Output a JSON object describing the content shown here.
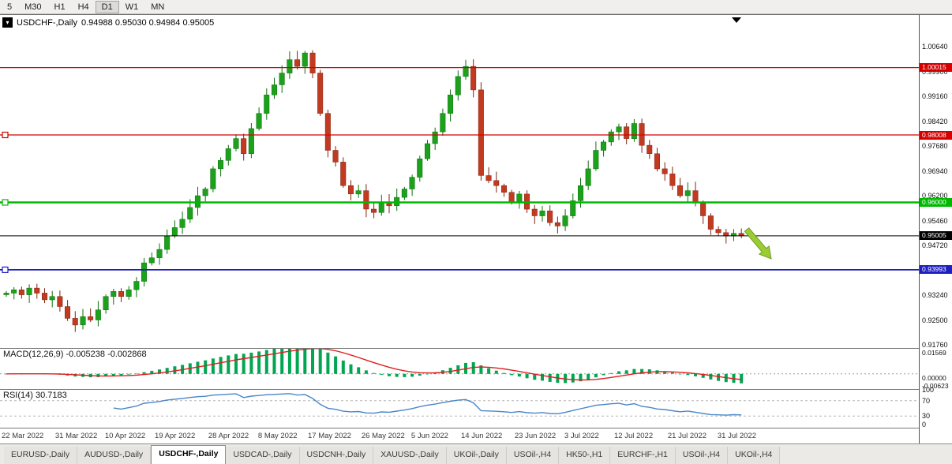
{
  "timeframe_toolbar": [
    "5",
    "M30",
    "H1",
    "H4",
    "D1",
    "W1",
    "MN"
  ],
  "active_timeframe": "D1",
  "header": {
    "symbol_label": "USDCHF-,Daily",
    "quote": "0.94988 0.95030 0.94984 0.95005"
  },
  "indicator_labels": {
    "macd": "MACD(12,26,9)",
    "macd_values": "-0.005238 -0.002868",
    "rsi": "RSI(14)",
    "rsi_value": "30.7183"
  },
  "chart_data": {
    "type": "candlestick",
    "symbol": "USDCHF",
    "timeframe": "Daily",
    "quote_ohlc": [
      0.94988,
      0.9503,
      0.94984,
      0.95005
    ],
    "first_open": 0.9325,
    "closes": [
      0.933,
      0.934,
      0.9325,
      0.9345,
      0.933,
      0.931,
      0.932,
      0.929,
      0.9255,
      0.9235,
      0.926,
      0.925,
      0.928,
      0.932,
      0.9335,
      0.932,
      0.934,
      0.9365,
      0.942,
      0.9435,
      0.946,
      0.95,
      0.9525,
      0.955,
      0.9585,
      0.962,
      0.964,
      0.97,
      0.9725,
      0.976,
      0.979,
      0.9745,
      0.982,
      0.9865,
      0.992,
      0.995,
      0.9985,
      1.0025,
      1.0005,
      1.0045,
      0.9985,
      0.9865,
      0.9755,
      0.972,
      0.965,
      0.9625,
      0.9635,
      0.958,
      0.957,
      0.96,
      0.959,
      0.9615,
      0.964,
      0.9675,
      0.973,
      0.9775,
      0.981,
      0.9865,
      0.992,
      0.9975,
      1.0005,
      0.9935,
      0.968,
      0.9665,
      0.965,
      0.963,
      0.96,
      0.9625,
      0.958,
      0.956,
      0.9575,
      0.954,
      0.953,
      0.956,
      0.9605,
      0.965,
      0.97,
      0.9755,
      0.978,
      0.981,
      0.9825,
      0.979,
      0.9835,
      0.977,
      0.9745,
      0.97,
      0.9685,
      0.965,
      0.962,
      0.9635,
      0.96,
      0.956,
      0.952,
      0.951,
      0.95,
      0.9508,
      0.9501
    ],
    "y_top_tick": 1.0064,
    "y_tick_step": 0.0074,
    "y_ticks": [
      "1.00640",
      "0.99900",
      "0.99160",
      "0.98420",
      "0.97680",
      "0.96940",
      "0.96200",
      "0.95460",
      "0.94720",
      "0.93980",
      "0.93240",
      "0.92500",
      "0.91760"
    ],
    "levels": [
      {
        "price": "1.00015",
        "value": 1.00015,
        "color": "#d40000",
        "width": 1.3,
        "marker": false
      },
      {
        "price": "0.98008",
        "value": 0.98008,
        "color": "#d40000",
        "width": 1.3,
        "marker": true
      },
      {
        "price": "0.96000",
        "value": 0.96,
        "color": "#00b800",
        "width": 2.4,
        "marker": true
      },
      {
        "price": "0.95005",
        "value": 0.95005,
        "color": "#000000",
        "width": 1,
        "marker": false
      },
      {
        "price": "0.93993",
        "value": 0.93993,
        "color": "#1f1fbf",
        "width": 1.8,
        "marker": true
      }
    ],
    "x_labels": [
      {
        "label": "22 Mar 2022",
        "i": 0
      },
      {
        "label": "31 Mar 2022",
        "i": 7
      },
      {
        "label": "10 Apr 2022",
        "i": 13.5
      },
      {
        "label": "19 Apr 2022",
        "i": 20
      },
      {
        "label": "28 Apr 2022",
        "i": 27
      },
      {
        "label": "8 May 2022",
        "i": 33.5
      },
      {
        "label": "17 May 2022",
        "i": 40
      },
      {
        "label": "26 May 2022",
        "i": 47
      },
      {
        "label": "5 Jun 2022",
        "i": 53.5
      },
      {
        "label": "14 Jun 2022",
        "i": 60
      },
      {
        "label": "23 Jun 2022",
        "i": 67
      },
      {
        "label": "3 Jul 2022",
        "i": 73.5
      },
      {
        "label": "12 Jul 2022",
        "i": 80
      },
      {
        "label": "21 Jul 2022",
        "i": 87
      },
      {
        "label": "31 Jul 2022",
        "i": 93.5
      }
    ],
    "indicators": {
      "macd": {
        "fast": 12,
        "slow": 26,
        "signal": 9,
        "display_values": "-0.005238 -0.002868",
        "axis_ticks": [
          {
            "label": "0.01569",
            "v": 0.01569
          },
          {
            "label": "0.00000",
            "v": 0
          },
          {
            "label": "-0.00623",
            "v": -0.00623
          }
        ]
      },
      "rsi": {
        "period": 14,
        "display_value": "30.7183",
        "axis_ticks": [
          {
            "label": "100",
            "v": 100
          },
          {
            "label": "70",
            "v": 70
          },
          {
            "label": "30",
            "v": 30
          },
          {
            "label": "0",
            "v": 0
          }
        ],
        "dashed_levels": [
          70,
          30
        ]
      }
    },
    "annotations": {
      "arrow": {
        "direction": "down-right",
        "color": "#9acd32"
      }
    }
  },
  "tabs": [
    "EURUSD-,Daily",
    "AUDUSD-,Daily",
    "USDCHF-,Daily",
    "USDCAD-,Daily",
    "USDCNH-,Daily",
    "XAUUSD-,Daily",
    "UKOil-,Daily",
    "USOil-,H4",
    "HK50-,H1",
    "EURCHF-,H1",
    "USOil-,H4",
    "UKOil-,H4"
  ],
  "active_tab_index": 2,
  "colors": {
    "candle_up": "#1ba11b",
    "candle_up_border": "#0d700d",
    "candle_down": "#c23a20",
    "candle_down_border": "#7d2412",
    "macd_hist": "#00a651",
    "macd_signal": "#e01f1f",
    "rsi_line": "#4a86c8",
    "arrow": "#9acd32",
    "arrow_border": "#75992a"
  }
}
